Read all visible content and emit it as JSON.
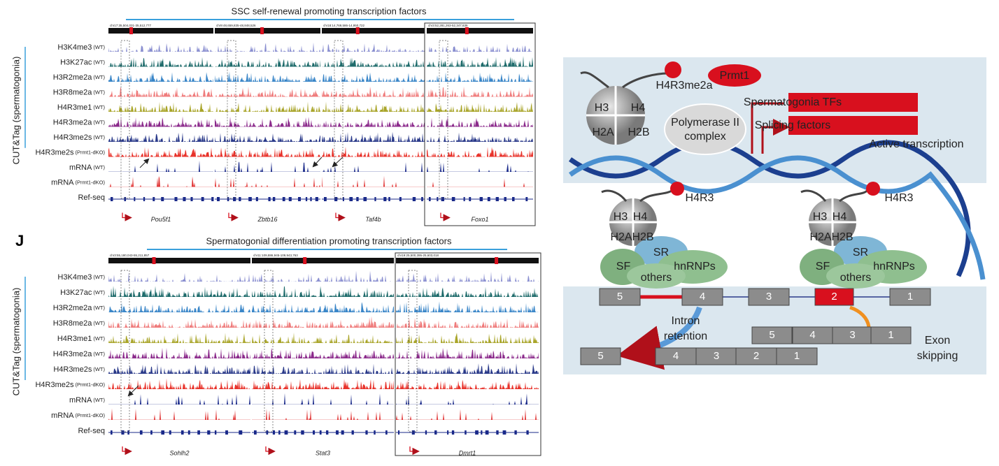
{
  "panel_top": {
    "title": "SSC self-renewal promoting transcription factors",
    "y_label": "CUT&Tag (spermatogonia)",
    "coords": [
      "chr17:35,504,031-35,512,777",
      "chr9:48,659,835-48,848,526",
      "chr18:14,769,586-14,950,722",
      "chr3:52,281,263-52,347,636"
    ],
    "genes": [
      "Pou5f1",
      "Zbtb16",
      "Taf4b",
      "Foxo1"
    ],
    "tracks": [
      {
        "name": "H3K4me3",
        "condition": "(WT)",
        "color": "#8a8fd0"
      },
      {
        "name": "H3K27ac",
        "condition": "(WT)",
        "color": "#1e6b6b"
      },
      {
        "name": "H3R2me2a",
        "condition": "(WT)",
        "color": "#3a86c8"
      },
      {
        "name": "H3R8me2a",
        "condition": "(WT)",
        "color": "#ef7b7b"
      },
      {
        "name": "H4R3me1",
        "condition": "(WT)",
        "color": "#a9a52a"
      },
      {
        "name": "H4R3me2a",
        "condition": "(WT)",
        "color": "#8b2a8b"
      },
      {
        "name": "H4R3me2s",
        "condition": "(WT)",
        "color": "#2a3a8a"
      },
      {
        "name": "H4R3me2s",
        "condition": "(Prmt1-dKO)",
        "color": "#e8322a"
      },
      {
        "name": "mRNA",
        "condition": "(WT)",
        "color": "#1a2a8a"
      },
      {
        "name": "mRNA",
        "condition": "(Prmt1-dKO)",
        "color": "#e03030"
      },
      {
        "name": "Ref-seq",
        "color": "#1a2a8a"
      }
    ]
  },
  "panel_bottom": {
    "label": "J",
    "title": "Spermatogonial differentiation promoting transcription factors",
    "y_label": "CUT&Tag (spermatogonia)",
    "coords": [
      "chr3:55,180,043-55,211,857",
      "chr11:109,886,945-109,943,763",
      "chr19:25,500,395-25,603,018"
    ],
    "genes": [
      "Sohlh2",
      "Stat3",
      "Dmrt1"
    ],
    "tracks": [
      {
        "name": "H3K4me3",
        "condition": "(WT)",
        "color": "#8a8fd0"
      },
      {
        "name": "H3K27ac",
        "condition": "(WT)",
        "color": "#1e6b6b"
      },
      {
        "name": "H3R2me2a",
        "condition": "(WT)",
        "color": "#3a86c8"
      },
      {
        "name": "H3R8me2a",
        "condition": "(WT)",
        "color": "#ef7b7b"
      },
      {
        "name": "H4R3me1",
        "condition": "(WT)",
        "color": "#a9a52a"
      },
      {
        "name": "H4R3me2a",
        "condition": "(WT)",
        "color": "#8b2a8b"
      },
      {
        "name": "H4R3me2s",
        "condition": "(WT)",
        "color": "#2a3a8a"
      },
      {
        "name": "H4R3me2s",
        "condition": "(Prmt1-dKO)",
        "color": "#e8322a"
      },
      {
        "name": "mRNA",
        "condition": "(WT)",
        "color": "#1a2a8a"
      },
      {
        "name": "mRNA",
        "condition": "(Prmt1-dKO)",
        "color": "#e03030"
      },
      {
        "name": "Ref-seq",
        "color": "#1a2a8a"
      }
    ]
  },
  "diagram": {
    "histones": [
      "H3",
      "H4",
      "H2A",
      "H2B"
    ],
    "mark_top": "H4R3me2a",
    "enzyme": "Prmt1",
    "polymerase": [
      "Polymerase II",
      "complex"
    ],
    "targets": [
      "Spermatogonia TFs",
      "Splicing factors"
    ],
    "active": "Active transcription",
    "mark_low": "H4R3",
    "factors": [
      "SR",
      "SF",
      "hnRNPs",
      "others"
    ],
    "exons_pre": [
      "5",
      "4",
      "3",
      "2",
      "1"
    ],
    "intron_retention": [
      "Intron",
      "retention"
    ],
    "exons_skip": [
      "5",
      "4",
      "3",
      "1"
    ],
    "exons_ir": [
      "5",
      "4",
      "3",
      "2",
      "1"
    ],
    "exon_skipping": [
      "Exon",
      "skipping"
    ]
  }
}
